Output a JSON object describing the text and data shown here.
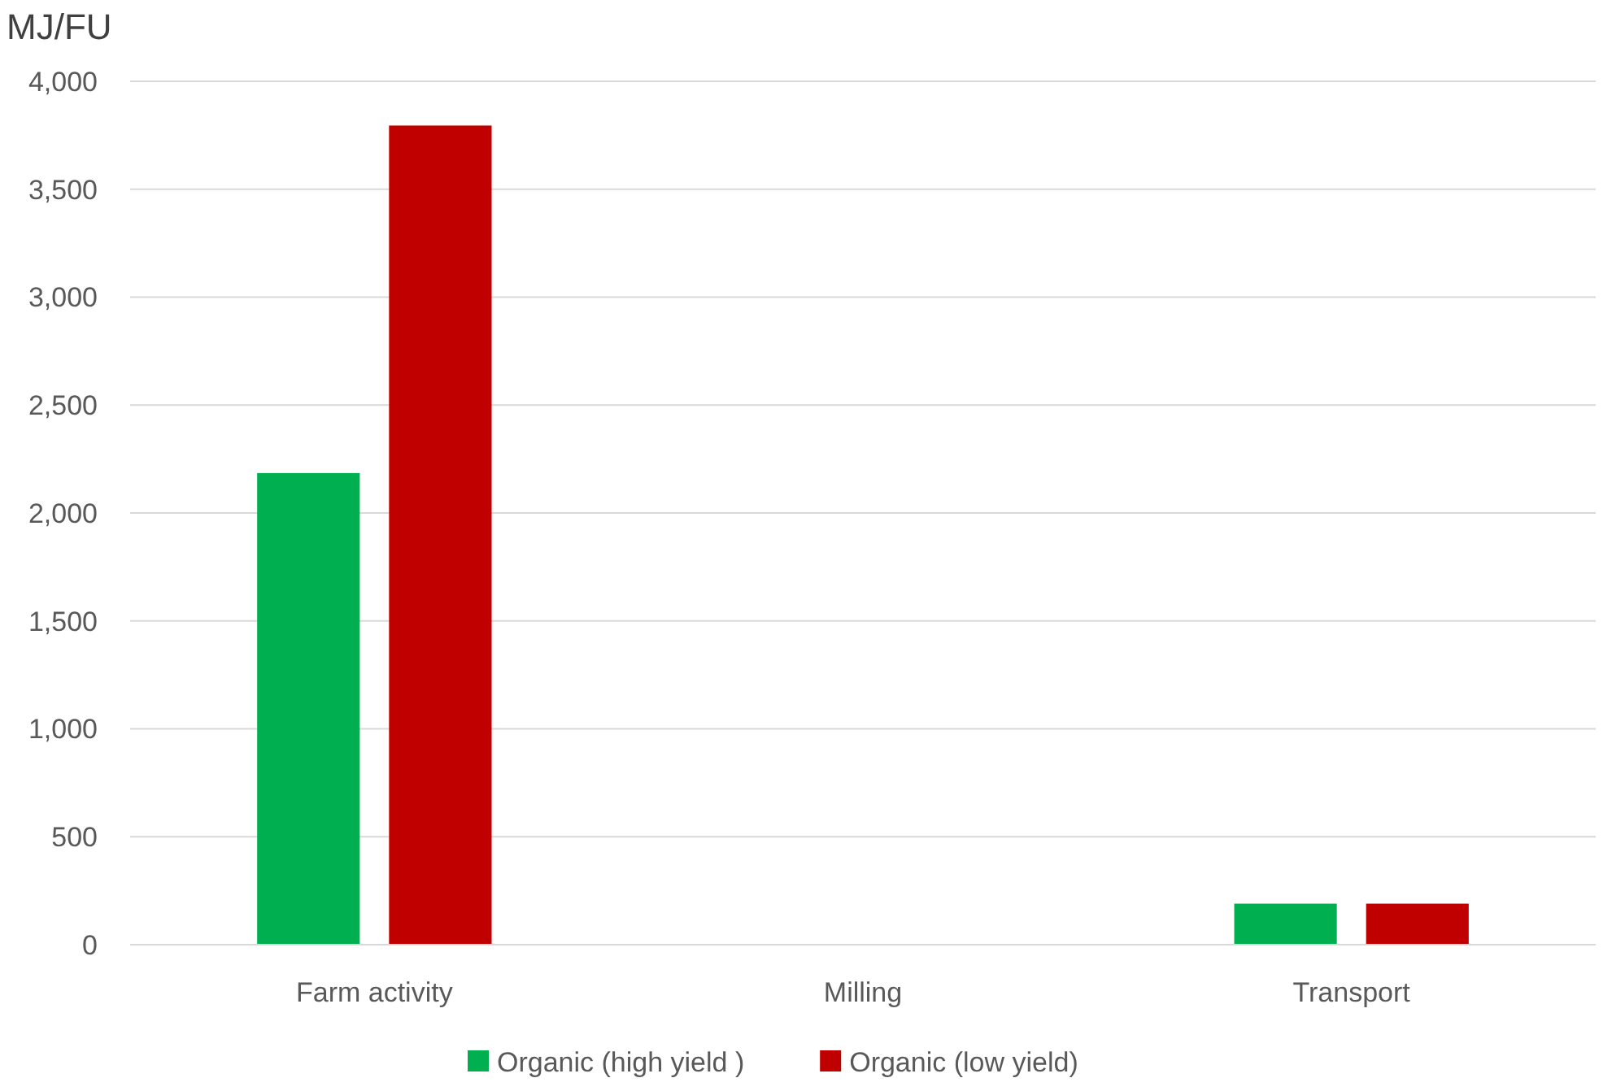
{
  "chart_data": {
    "type": "bar",
    "ylabel": "MJ/FU",
    "categories": [
      "Farm activity",
      "Milling",
      "Transport"
    ],
    "series": [
      {
        "name": "Organic (high yield )",
        "color": "#00b050",
        "values": [
          2185,
          0,
          190
        ]
      },
      {
        "name": "Organic (low yield)",
        "color": "#c00000",
        "values": [
          3795,
          0,
          190
        ]
      }
    ],
    "ylim": [
      0,
      4000
    ],
    "yticks": [
      {
        "value": 0,
        "label": "0"
      },
      {
        "value": 500,
        "label": "500"
      },
      {
        "value": 1000,
        "label": "1,000"
      },
      {
        "value": 1500,
        "label": "1,500"
      },
      {
        "value": 2000,
        "label": "2,000"
      },
      {
        "value": 2500,
        "label": "2,500"
      },
      {
        "value": 3000,
        "label": "3,000"
      },
      {
        "value": 3500,
        "label": "3,500"
      },
      {
        "value": 4000,
        "label": "4,000"
      }
    ],
    "grid": "y",
    "legend": "bottom"
  }
}
